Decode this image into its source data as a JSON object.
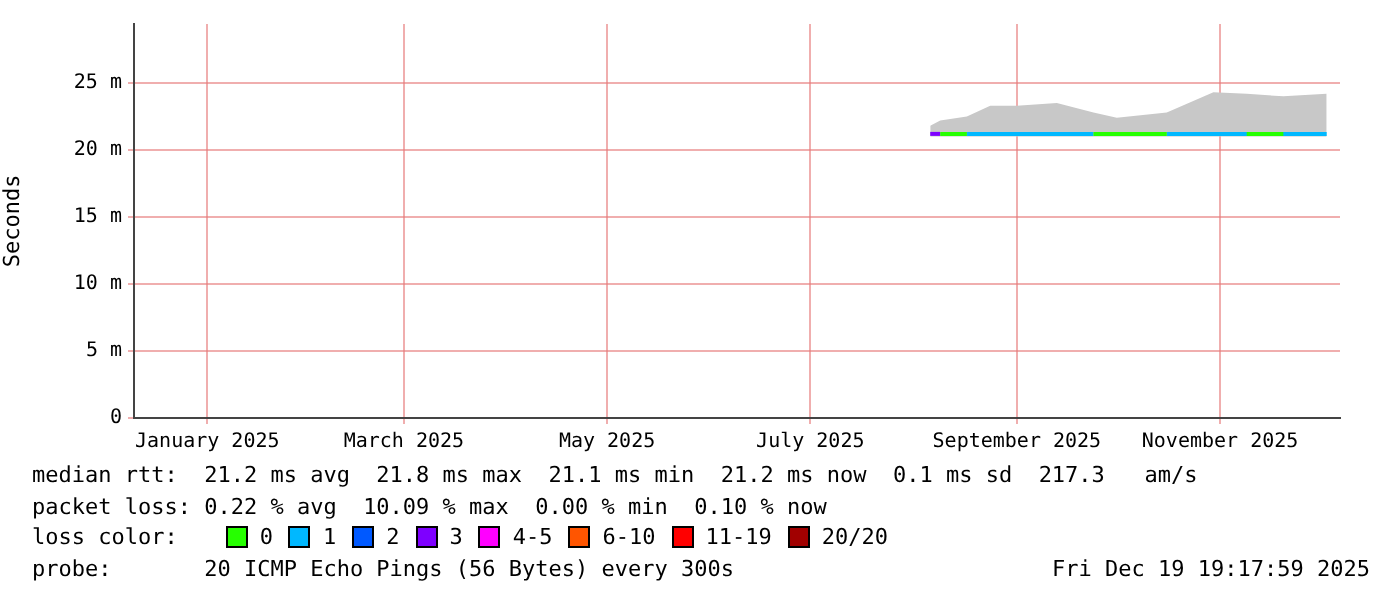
{
  "chart_data": {
    "type": "line",
    "ylabel": "Seconds",
    "legend_title": "loss color:",
    "legend": "bottom",
    "grid": true,
    "marker": "none",
    "line_style": "solid",
    "xlim": [
      "2024-12-10",
      "2025-12-07"
    ],
    "xticks": [
      {
        "value": "2025-01-01",
        "label": "January 2025"
      },
      {
        "value": "2025-03-01",
        "label": "March 2025"
      },
      {
        "value": "2025-05-01",
        "label": "May 2025"
      },
      {
        "value": "2025-07-01",
        "label": "July 2025"
      },
      {
        "value": "2025-09-01",
        "label": "September 2025"
      },
      {
        "value": "2025-11-01",
        "label": "November 2025"
      }
    ],
    "ylim": [
      0,
      29.4
    ],
    "yticks": [
      0,
      {
        "value": 5,
        "label": "5 m"
      },
      {
        "value": 10,
        "label": "10 m"
      },
      {
        "value": 15,
        "label": "15 m"
      },
      {
        "value": 20,
        "label": "20 m"
      },
      {
        "value": 25,
        "label": "25 m"
      }
    ],
    "x": [
      "2025-08-06",
      "2025-08-09",
      "2025-08-17",
      "2025-08-24",
      "2025-09-01",
      "2025-09-13",
      "2025-09-24",
      "2025-10-01",
      "2025-10-16",
      "2025-10-30",
      "2025-11-09",
      "2025-11-20",
      "2025-12-03"
    ],
    "series": [
      {
        "type": "area",
        "color": "#c8c8c8",
        "values": [
          null,
          null,
          null,
          null,
          null,
          null,
          null,
          null,
          null,
          null,
          null,
          null,
          null
        ],
        "lower": [
          21.0,
          21.0,
          21.0,
          21.0,
          21.0,
          21.0,
          21.0,
          21.0,
          21.0,
          21.0,
          21.0,
          21.0,
          21.0
        ],
        "upper": [
          21.8,
          22.2,
          22.5,
          23.3,
          23.3,
          23.5,
          22.8,
          22.4,
          22.8,
          24.3,
          24.2,
          24.0,
          24.2
        ]
      },
      {
        "name": "0",
        "color": "#26ff00",
        "values": [
          null,
          21.2,
          21.2,
          null,
          null,
          null,
          21.2,
          21.2,
          21.2,
          null,
          21.2,
          21.2,
          null
        ]
      },
      {
        "name": "1",
        "color": "#00b8ff",
        "values": [
          null,
          null,
          21.2,
          21.2,
          21.2,
          21.2,
          21.2,
          null,
          21.2,
          21.2,
          21.2,
          21.2,
          21.2
        ]
      },
      {
        "name": "2",
        "color": "#0059ff",
        "values": [
          null,
          null,
          null,
          null,
          null,
          null,
          null,
          null,
          null,
          null,
          null,
          null,
          null
        ]
      },
      {
        "name": "3",
        "color": "#7e00ff",
        "values": [
          21.2,
          21.2,
          null,
          null,
          null,
          null,
          null,
          null,
          null,
          null,
          null,
          null,
          null
        ]
      },
      {
        "name": "4-5",
        "color": "#ff00ff",
        "values": [
          null,
          null,
          null,
          null,
          null,
          null,
          null,
          null,
          null,
          null,
          null,
          null,
          null
        ]
      },
      {
        "name": "6-10",
        "color": "#ff5500",
        "values": [
          null,
          null,
          null,
          null,
          null,
          null,
          null,
          null,
          null,
          null,
          null,
          null,
          null
        ]
      },
      {
        "name": "11-19",
        "color": "#ff0000",
        "values": [
          null,
          null,
          null,
          null,
          null,
          null,
          null,
          null,
          null,
          null,
          null,
          null,
          null
        ]
      },
      {
        "name": "20/20",
        "color": "#a10000",
        "values": [
          null,
          null,
          null,
          null,
          null,
          null,
          null,
          null,
          null,
          null,
          null,
          null,
          null
        ]
      }
    ],
    "annotations": [
      "median rtt:  21.2 ms avg  21.8 ms max  21.1 ms min  21.2 ms now  0.1 ms sd  217.3   am/s",
      "packet loss: 0.22 % avg  10.09 % max  0.00 % min  0.10 % now",
      "probe:       20 ICMP Echo Pings (56 Bytes) every 300s",
      "Fri Dec 19 19:17:59 2025"
    ]
  }
}
